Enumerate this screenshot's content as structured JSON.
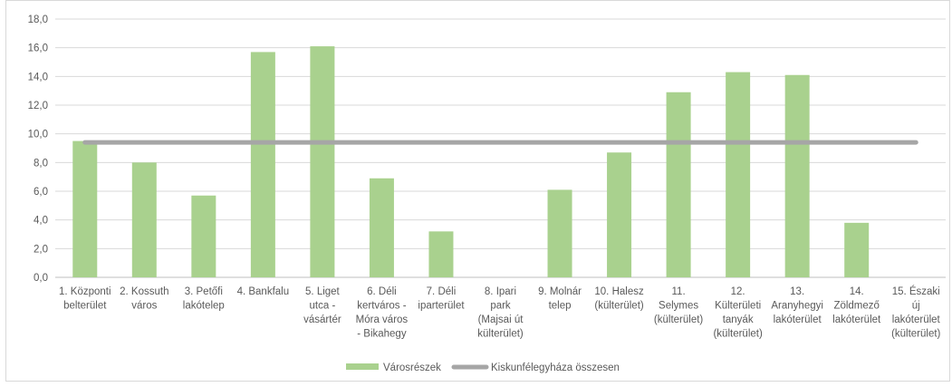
{
  "chart_data": {
    "type": "bar",
    "categories": [
      [
        "1. Központi",
        "belterület"
      ],
      [
        "2. Kossuth",
        "város"
      ],
      [
        "3. Petőfi",
        "lakótelep"
      ],
      [
        "4. Bankfalu"
      ],
      [
        "5. Liget",
        "utca -",
        "vásártér"
      ],
      [
        "6. Déli",
        "kertváros -",
        "Móra város",
        "- Bikahegy"
      ],
      [
        "7. Déli",
        "iparterület"
      ],
      [
        "8. Ipari",
        "park",
        "(Majsai út",
        "külterület)"
      ],
      [
        "9. Molnár",
        "telep"
      ],
      [
        "10. Halesz",
        "(külterület)"
      ],
      [
        "11.",
        "Selymes",
        "(külterület)"
      ],
      [
        "12.",
        "Külterületi",
        "tanyák",
        "(külterület)"
      ],
      [
        "13.",
        "Aranyhegyi",
        "lakóterület"
      ],
      [
        "14.",
        "Zöldmező",
        "lakóterület"
      ],
      [
        "15. Északi",
        "új",
        "lakóterület",
        "(külterület)"
      ]
    ],
    "series": [
      {
        "name": "Városrészek",
        "kind": "bar",
        "color": "#a9d18e",
        "values": [
          9.5,
          8.0,
          5.7,
          15.7,
          16.1,
          6.9,
          3.2,
          null,
          6.1,
          8.7,
          12.9,
          14.3,
          14.1,
          3.8,
          null
        ]
      },
      {
        "name": "Kiskunfélegyháza összesen",
        "kind": "line",
        "color": "#a6a6a6",
        "value": 9.4
      }
    ],
    "ylim": [
      0,
      18
    ],
    "yticks": [
      "0,0",
      "2,0",
      "4,0",
      "6,0",
      "8,0",
      "10,0",
      "12,0",
      "14,0",
      "16,0",
      "18,0"
    ],
    "ystep": 2,
    "grid": true,
    "legend_position": "bottom"
  }
}
